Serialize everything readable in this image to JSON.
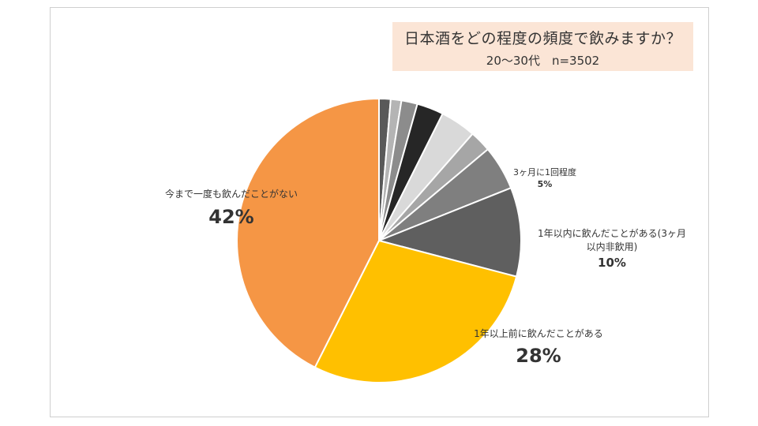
{
  "title": {
    "line1": "日本酒をどの程度の頻度で飲みますか？",
    "line2": "20〜30代　n=3502"
  },
  "chart_data": {
    "type": "pie",
    "title": "日本酒をどの程度の頻度で飲みますか？",
    "subtitle": "20〜30代　n=3502",
    "start_angle_deg": 0,
    "direction": "clockwise",
    "slices": [
      {
        "label": "",
        "value": 1.3,
        "color": "#595959"
      },
      {
        "label": "",
        "value": 1.2,
        "color": "#b4b4b4"
      },
      {
        "label": "",
        "value": 1.8,
        "color": "#8c8c8c"
      },
      {
        "label": "",
        "value": 3.0,
        "color": "#262626"
      },
      {
        "label": "",
        "value": 4.0,
        "color": "#d9d9d9"
      },
      {
        "label": "",
        "value": 2.4,
        "color": "#a6a6a6"
      },
      {
        "label": "3ヶ月に1回程度",
        "value": 5,
        "display": "5%",
        "color": "#7f7f7f"
      },
      {
        "label": "1年以内に飲んだことがある(3ヶ月以内非飲用)",
        "label_lines": [
          "1年以内に飲んだことがある(3ヶ月",
          "以内非飲用)"
        ],
        "value": 10,
        "display": "10%",
        "color": "#5f5f5f"
      },
      {
        "label": "1年以上前に飲んだことがある",
        "value": 28,
        "display": "28%",
        "color": "#ffc000"
      },
      {
        "label": "今まで一度も飲んだことがない",
        "value": 42,
        "display": "42%",
        "color": "#f59645"
      }
    ]
  }
}
